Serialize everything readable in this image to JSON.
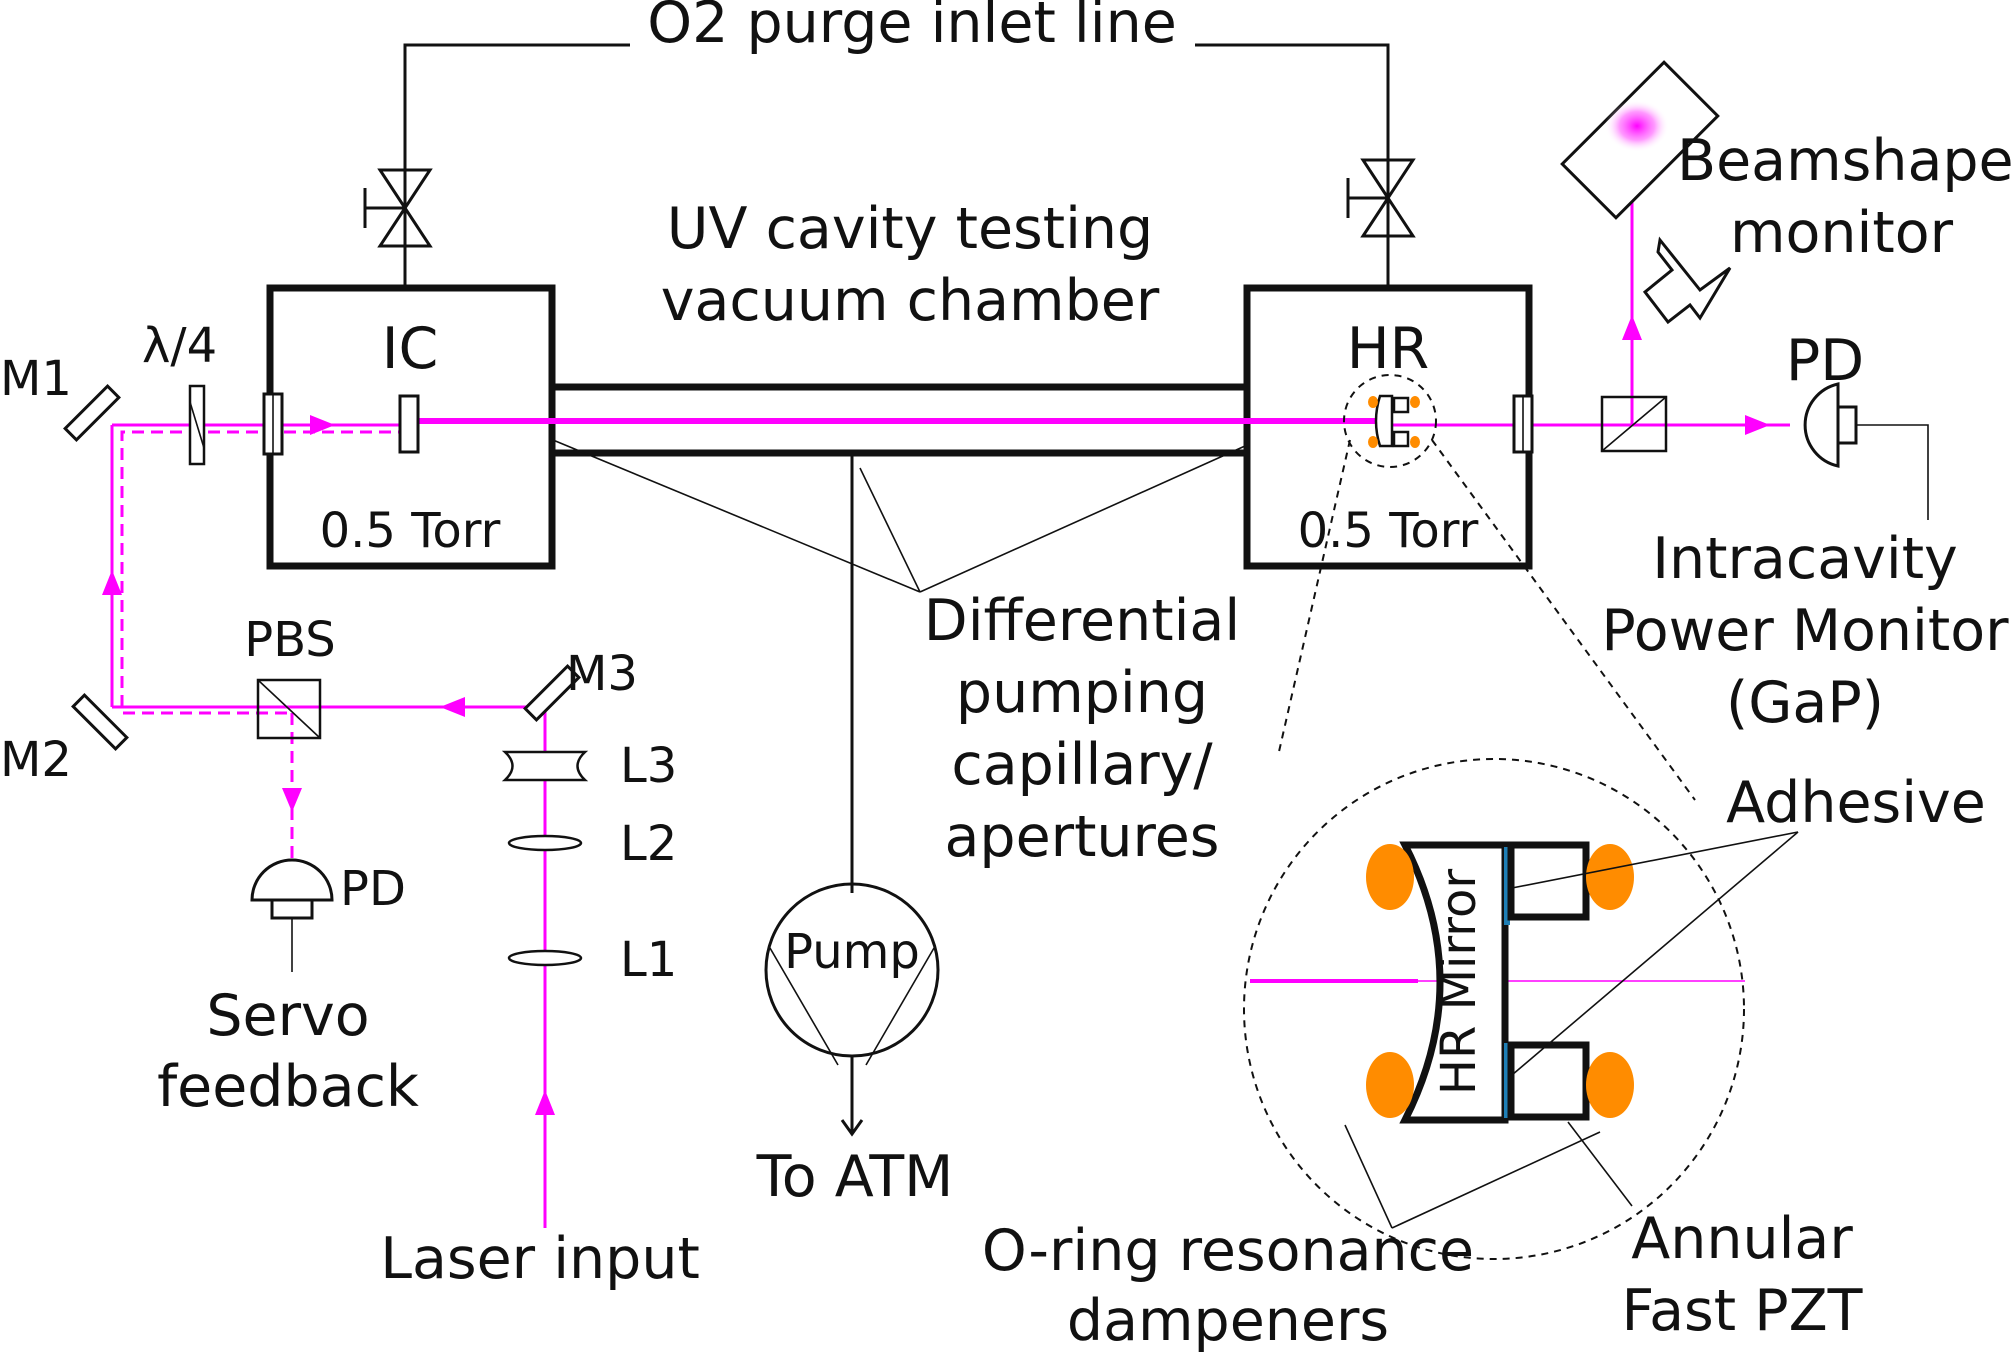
{
  "colors": {
    "beam": "#ff00ff",
    "orange": "#ff8c00",
    "adhesive": "#1f7fb5",
    "line": "#111111"
  },
  "labels": {
    "purge": "O2 purge inlet line",
    "chamber_line1": "UV cavity testing",
    "chamber_line2": "vacuum chamber",
    "ic": "IC",
    "hr": "HR",
    "pressure_left": "0.5 Torr",
    "pressure_right": "0.5 Torr",
    "m1": "M1",
    "qwp": "λ/4",
    "m2": "M2",
    "pbs": "PBS",
    "m3": "M3",
    "l3": "L3",
    "l2": "L2",
    "l1": "L1",
    "pd_left": "PD",
    "servo_line1": "Servo",
    "servo_line2": "feedback",
    "laser_input": "Laser input",
    "pump": "Pump",
    "to_atm": "To ATM",
    "diff_line1": "Differential",
    "diff_line2": "pumping",
    "diff_line3": "capillary/",
    "diff_line4": "apertures",
    "beamshape_line1": "Beamshape",
    "beamshape_line2": "monitor",
    "pd_right": "PD",
    "intracavity_line1": "Intracavity",
    "intracavity_line2": "Power Monitor",
    "intracavity_line3": "(GaP)",
    "adhesive": "Adhesive",
    "hr_mirror": "HR Mirror",
    "oring_line1": "O-ring resonance",
    "oring_line2": "dampeners",
    "pzt_line1": "Annular",
    "pzt_line2": "Fast PZT"
  }
}
